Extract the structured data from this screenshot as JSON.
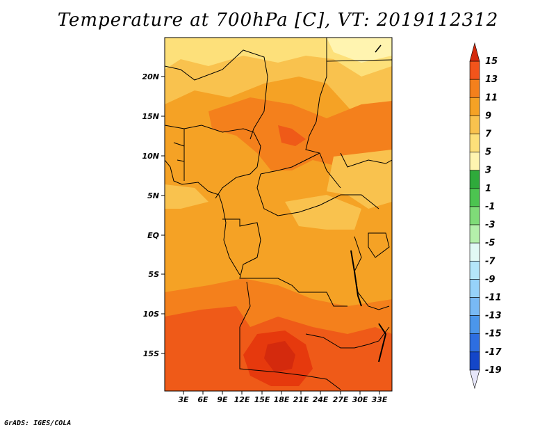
{
  "title": "Temperature at 700hPa [C], VT: 2019112312",
  "credit": "GrADS: IGES/COLA",
  "map": {
    "lat_ticks": [
      "20N",
      "15N",
      "10N",
      "5N",
      "EQ",
      "5S",
      "10S",
      "15S"
    ],
    "lon_ticks": [
      "3E",
      "6E",
      "9E",
      "12E",
      "15E",
      "18E",
      "21E",
      "24E",
      "27E",
      "30E",
      "33E"
    ]
  },
  "colorbar": {
    "labels": [
      "15",
      "13",
      "11",
      "9",
      "7",
      "5",
      "3",
      "1",
      "-1",
      "-3",
      "-5",
      "-7",
      "-9",
      "-11",
      "-13",
      "-15",
      "-17",
      "-19"
    ],
    "colors": [
      "#e6390d",
      "#f2541b",
      "#f4801c",
      "#f5a225",
      "#f9c24e",
      "#fde07a",
      "#fff4b0",
      "#2faa3b",
      "#4cc450",
      "#7fdc78",
      "#b4f0ab",
      "#e1faf5",
      "#b4e6fa",
      "#96d2fa",
      "#78b9f5",
      "#4b96eb",
      "#2d6ee1",
      "#1446c8",
      "#0d2896",
      "#e6e6fa"
    ],
    "top_color": "#d42a0d",
    "bottom_color": "#e6e6fa"
  },
  "field_colors": {
    "sahara": "#fde6a0",
    "warm7": "#f9c24e",
    "warm9": "#f5a225",
    "warm11": "#f4801c",
    "hot13": "#ef5a18",
    "hot15": "#e6390d",
    "border": "#000000"
  }
}
